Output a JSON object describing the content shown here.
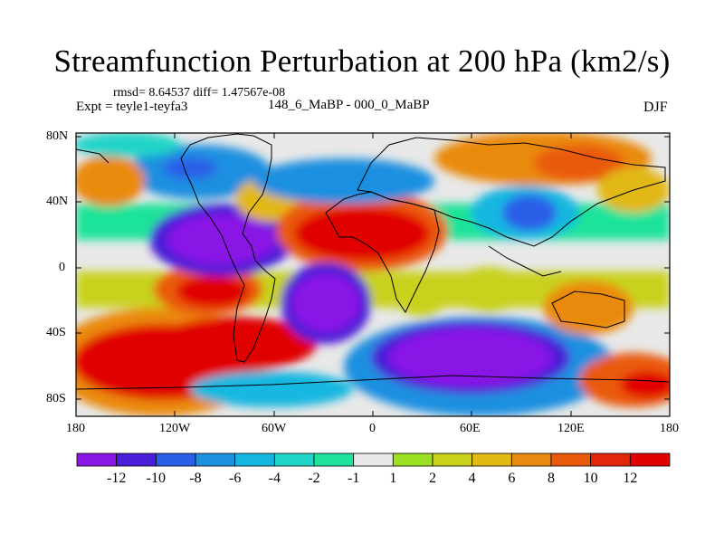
{
  "title": "Streamfunction Perturbation at 200 hPa (km2/s)",
  "stats": "rmsd= 8.64537 diff= 1.47567e-08",
  "experiment": "Expt = teyle1-teyfa3",
  "period": "148_6_MaBP - 000_0_MaBP",
  "season": "DJF",
  "lat_ticks": [
    "80N",
    "40N",
    "0",
    "40S",
    "80S"
  ],
  "lon_ticks": [
    "180",
    "120W",
    "60W",
    "0",
    "60E",
    "120E",
    "180"
  ],
  "colorbar": {
    "labels": [
      "-12",
      "-10",
      "-8",
      "-6",
      "-4",
      "-2",
      "-1",
      "1",
      "2",
      "4",
      "6",
      "8",
      "10",
      "12"
    ],
    "colors": [
      "#8a17e6",
      "#4a1fd8",
      "#2b5fe8",
      "#1e90e0",
      "#15b7e0",
      "#21d4c8",
      "#1fe39a",
      "#e8e8e8",
      "#9be023",
      "#c8d21a",
      "#e2b814",
      "#ea8a10",
      "#ea5a0c",
      "#e2260c",
      "#e00000"
    ]
  }
}
